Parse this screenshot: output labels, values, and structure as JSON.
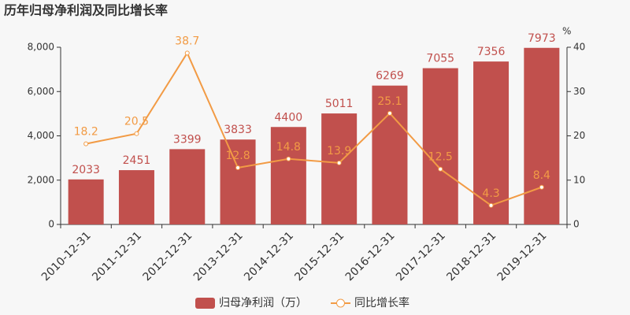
{
  "chart_data": {
    "type": "bar",
    "title": "历年归母净利润及同比增长率",
    "categories": [
      "2010-12-31",
      "2011-12-31",
      "2012-12-31",
      "2013-12-31",
      "2014-12-31",
      "2015-12-31",
      "2016-12-31",
      "2017-12-31",
      "2018-12-31",
      "2019-12-31"
    ],
    "series": [
      {
        "name": "归母净利润（万）",
        "type": "bar",
        "color": "#c1504d",
        "values": [
          2033,
          2451,
          3399,
          3833,
          4400,
          5011,
          6269,
          7055,
          7356,
          7973
        ]
      },
      {
        "name": "同比增长率",
        "type": "line",
        "axis": "y2",
        "color": "#f29b45",
        "values": [
          18.2,
          20.5,
          38.7,
          12.8,
          14.8,
          13.9,
          25.1,
          12.5,
          4.3,
          8.4
        ]
      }
    ],
    "ylim": [
      0,
      8000
    ],
    "yticks": [
      0,
      {
        "value": 2000,
        "label": "2,000"
      },
      {
        "value": 4000,
        "label": "4,000"
      },
      {
        "value": 6000,
        "label": "6,000"
      },
      {
        "value": 8000,
        "label": "8,000"
      }
    ],
    "y2label": "%",
    "y2lim": [
      0,
      40
    ],
    "y2ticks": [
      0,
      10,
      20,
      30,
      40
    ],
    "legend": "bottom"
  }
}
